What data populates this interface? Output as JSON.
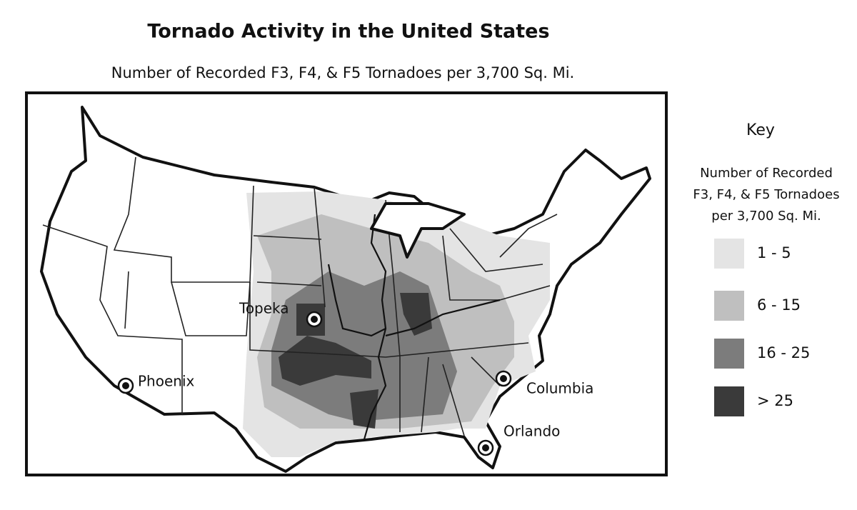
{
  "title": "Tornado Activity in the United States",
  "subtitle": "Number of Recorded F3, F4, & F5 Tornadoes per 3,700 Sq. Mi.",
  "key": {
    "title": "Key",
    "description": [
      "Number of Recorded",
      "F3, F4, & F5 Tornadoes",
      "per 3,700 Sq. Mi."
    ],
    "items": [
      {
        "label": "1 - 5",
        "color": "#e4e4e4"
      },
      {
        "label": "6 - 15",
        "color": "#bfbfbf"
      },
      {
        "label": "16 - 25",
        "color": "#7c7c7c"
      },
      {
        "label": "> 25",
        "color": "#3a3a3a"
      }
    ]
  },
  "cities": [
    {
      "label": "Topeka"
    },
    {
      "label": "Phoenix"
    },
    {
      "label": "Columbia"
    },
    {
      "label": "Orlando"
    }
  ]
}
